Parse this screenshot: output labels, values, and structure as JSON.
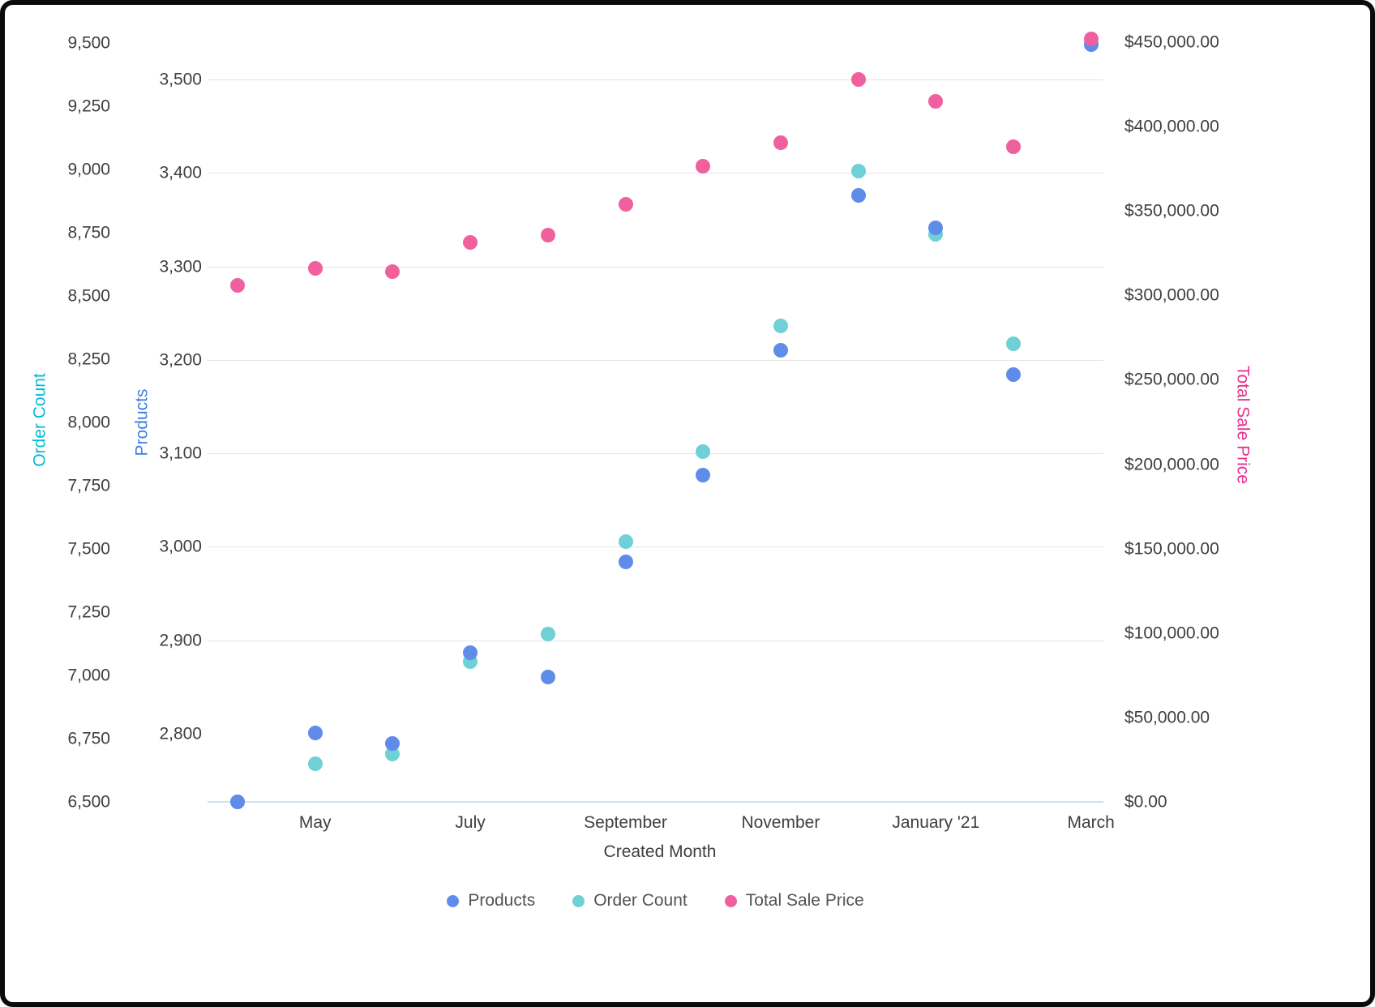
{
  "chart_data": {
    "type": "scatter",
    "xlabel": "Created Month",
    "x_ticks": [
      {
        "index": 1,
        "label": "May"
      },
      {
        "index": 3,
        "label": "July"
      },
      {
        "index": 5,
        "label": "September"
      },
      {
        "index": 7,
        "label": "November"
      },
      {
        "index": 9,
        "label": "January '21"
      },
      {
        "index": 11,
        "label": "March"
      }
    ],
    "axes": {
      "order_count": {
        "label": "Order Count",
        "color": "#00bcd4",
        "min": 6500,
        "max": 9500,
        "tick_values": [
          6500,
          6750,
          7000,
          7250,
          7500,
          7750,
          8000,
          8250,
          8500,
          8750,
          9000,
          9250,
          9500
        ],
        "tick_labels": [
          "6,500",
          "6,750",
          "7,000",
          "7,250",
          "7,500",
          "7,750",
          "8,000",
          "8,250",
          "8,500",
          "8,750",
          "9,000",
          "9,250",
          "9,500"
        ]
      },
      "products": {
        "label": "Products",
        "color": "#3f7de0",
        "min": 2800,
        "max": 3500,
        "tick_values": [
          2800,
          2900,
          3000,
          3100,
          3200,
          3300,
          3400,
          3500
        ],
        "tick_labels": [
          "2,800",
          "2,900",
          "3,000",
          "3,100",
          "3,200",
          "3,300",
          "3,400",
          "3,500"
        ],
        "gridline_values": [
          2900,
          3000,
          3100,
          3200,
          3300,
          3400,
          3500
        ]
      },
      "total_sale_price": {
        "label": "Total Sale Price",
        "color": "#e8308e",
        "min": 0,
        "max": 450000,
        "tick_values": [
          0,
          50000,
          100000,
          150000,
          200000,
          250000,
          300000,
          350000,
          400000,
          450000
        ],
        "tick_labels": [
          "$0.00",
          "$50,000.00",
          "$100,000.00",
          "$150,000.00",
          "$200,000.00",
          "$250,000.00",
          "$300,000.00",
          "$350,000.00",
          "$400,000.00",
          "$450,000.00"
        ]
      }
    },
    "series": [
      {
        "name": "Products",
        "axis": "products",
        "color": "#5f8ce8",
        "values": [
          2727,
          2801,
          2790,
          2887,
          2861,
          2984,
          3077,
          3210,
          3376,
          3341,
          3184,
          3537
        ]
      },
      {
        "name": "Order Count",
        "axis": "order_count",
        "color": "#6fd0d6",
        "values": [
          6500,
          6650,
          6690,
          7055,
          7165,
          7530,
          7885,
          8380,
          8995,
          8745,
          8310,
          9500
        ]
      },
      {
        "name": "Total Sale Price",
        "axis": "total_sale_price",
        "color": "#f0609e",
        "values": [
          306000,
          316000,
          314000,
          331500,
          335500,
          354000,
          376500,
          390500,
          428000,
          415000,
          388000,
          452000
        ]
      }
    ]
  }
}
